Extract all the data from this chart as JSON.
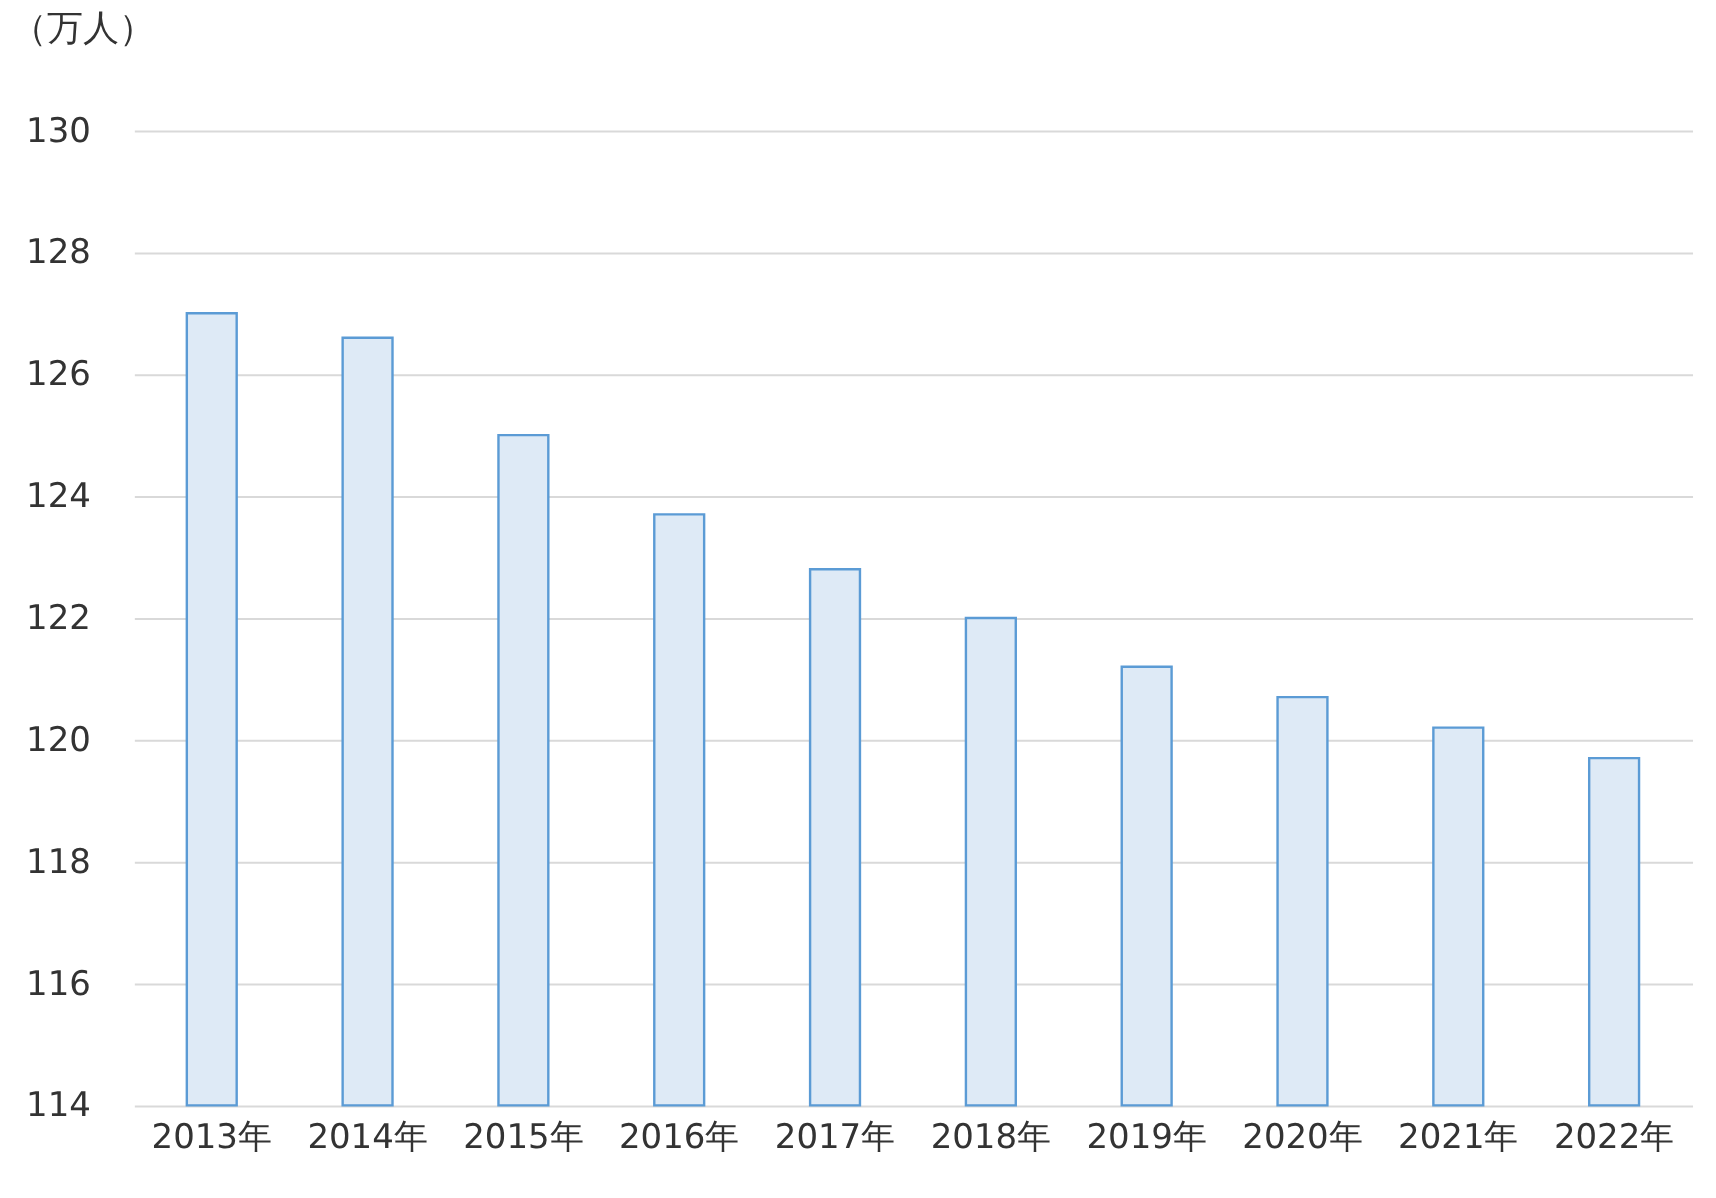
{
  "chart_data": {
    "type": "bar",
    "ylabel": "（万人）",
    "categories": [
      "2013年",
      "2014年",
      "2015年",
      "2016年",
      "2017年",
      "2018年",
      "2019年",
      "2020年",
      "2021年",
      "2022年"
    ],
    "values": [
      127.0,
      126.6,
      125.0,
      123.7,
      122.8,
      122.0,
      121.2,
      120.7,
      120.2,
      119.7
    ],
    "color": "#deeaf6",
    "ylim": [
      114,
      130
    ],
    "yticks": [
      114,
      116,
      118,
      120,
      122,
      124,
      126,
      128,
      130
    ],
    "grid": "y"
  }
}
